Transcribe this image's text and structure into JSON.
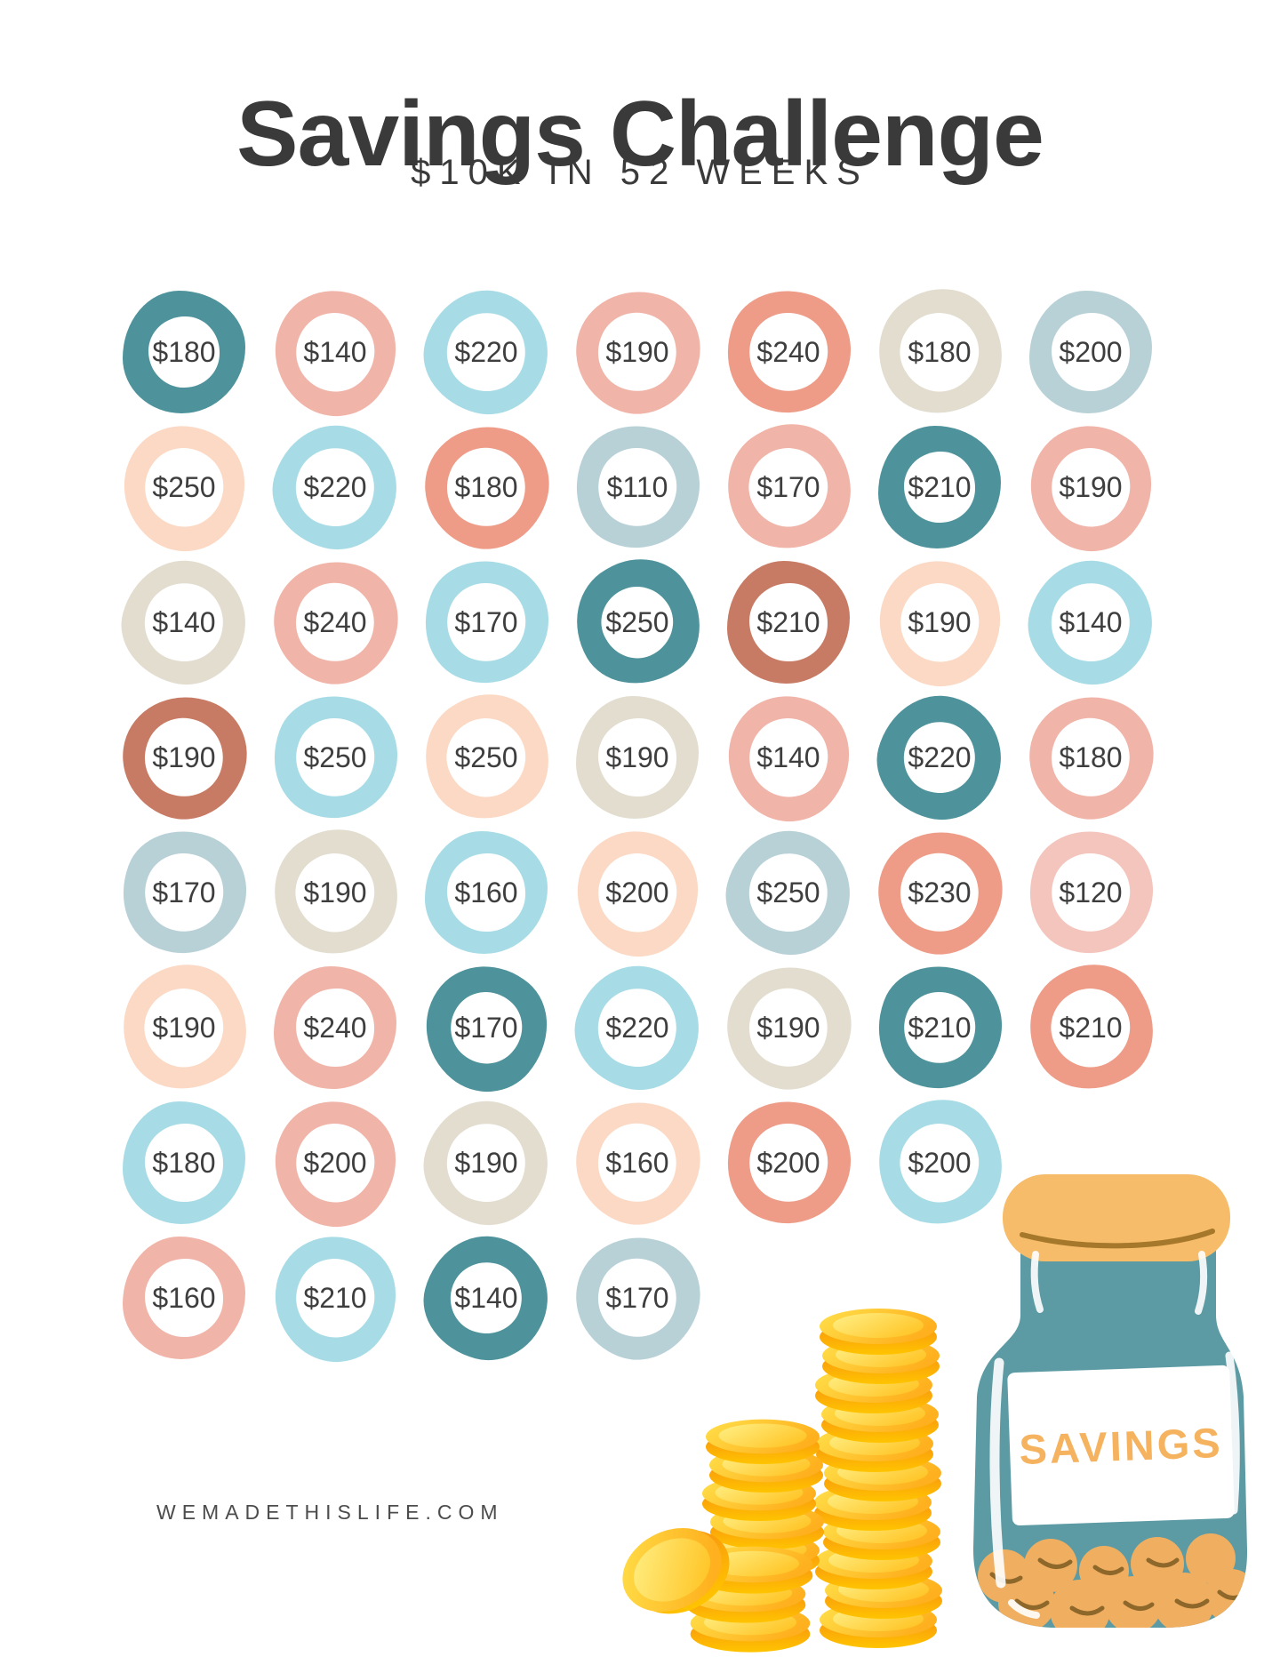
{
  "header": {
    "title": "Savings Challenge",
    "subtitle": "$10K IN 52 WEEKS"
  },
  "footer": {
    "website": "WEMADETHISLIFE.COM"
  },
  "jar": {
    "label": "SAVINGS"
  },
  "palette": {
    "teal": "#4E939B",
    "pink": "#F1B4A8",
    "lightblue": "#A7DCE6",
    "salmon": "#EE9C87",
    "beige": "#E2DDCF",
    "grayblue": "#B8D1D7",
    "peach": "#FBD9C4",
    "terracotta": "#C87B64",
    "pinklight": "#F4C5BC",
    "ink": "#3A3A3A"
  },
  "illustration_colors": {
    "jar_body": "#5C9BA4",
    "jar_lid": "#F6BC69",
    "jar_label_text": "#F5B35F",
    "jar_coins": "#F0AE61",
    "jar_coin_line": "#8E672A",
    "lid_line": "#A5782B",
    "gold_top_1": "#FFE04A",
    "gold_top_2": "#FFB01E",
    "gold_inner_1": "#FFF087",
    "gold_inner_2": "#FFC72B",
    "gold_side_1": "#F78E11",
    "gold_side_2": "#FFC400"
  },
  "grid": {
    "columns": 7,
    "rows": 8,
    "circles": [
      {
        "row": 1,
        "col": 1,
        "amount": "$180",
        "color": "teal"
      },
      {
        "row": 1,
        "col": 2,
        "amount": "$140",
        "color": "pink"
      },
      {
        "row": 1,
        "col": 3,
        "amount": "$220",
        "color": "lightblue"
      },
      {
        "row": 1,
        "col": 4,
        "amount": "$190",
        "color": "pink"
      },
      {
        "row": 1,
        "col": 5,
        "amount": "$240",
        "color": "salmon"
      },
      {
        "row": 1,
        "col": 6,
        "amount": "$180",
        "color": "beige"
      },
      {
        "row": 1,
        "col": 7,
        "amount": "$200",
        "color": "grayblue"
      },
      {
        "row": 2,
        "col": 1,
        "amount": "$250",
        "color": "peach"
      },
      {
        "row": 2,
        "col": 2,
        "amount": "$220",
        "color": "lightblue"
      },
      {
        "row": 2,
        "col": 3,
        "amount": "$180",
        "color": "salmon"
      },
      {
        "row": 2,
        "col": 4,
        "amount": "$110",
        "color": "grayblue"
      },
      {
        "row": 2,
        "col": 5,
        "amount": "$170",
        "color": "pink"
      },
      {
        "row": 2,
        "col": 6,
        "amount": "$210",
        "color": "teal"
      },
      {
        "row": 2,
        "col": 7,
        "amount": "$190",
        "color": "pink"
      },
      {
        "row": 3,
        "col": 1,
        "amount": "$140",
        "color": "beige"
      },
      {
        "row": 3,
        "col": 2,
        "amount": "$240",
        "color": "pink"
      },
      {
        "row": 3,
        "col": 3,
        "amount": "$170",
        "color": "lightblue"
      },
      {
        "row": 3,
        "col": 4,
        "amount": "$250",
        "color": "teal"
      },
      {
        "row": 3,
        "col": 5,
        "amount": "$210",
        "color": "terracotta"
      },
      {
        "row": 3,
        "col": 6,
        "amount": "$190",
        "color": "peach"
      },
      {
        "row": 3,
        "col": 7,
        "amount": "$140",
        "color": "lightblue"
      },
      {
        "row": 4,
        "col": 1,
        "amount": "$190",
        "color": "terracotta"
      },
      {
        "row": 4,
        "col": 2,
        "amount": "$250",
        "color": "lightblue"
      },
      {
        "row": 4,
        "col": 3,
        "amount": "$250",
        "color": "peach"
      },
      {
        "row": 4,
        "col": 4,
        "amount": "$190",
        "color": "beige"
      },
      {
        "row": 4,
        "col": 5,
        "amount": "$140",
        "color": "pink"
      },
      {
        "row": 4,
        "col": 6,
        "amount": "$220",
        "color": "teal"
      },
      {
        "row": 4,
        "col": 7,
        "amount": "$180",
        "color": "pink"
      },
      {
        "row": 5,
        "col": 1,
        "amount": "$170",
        "color": "grayblue"
      },
      {
        "row": 5,
        "col": 2,
        "amount": "$190",
        "color": "beige"
      },
      {
        "row": 5,
        "col": 3,
        "amount": "$160",
        "color": "lightblue"
      },
      {
        "row": 5,
        "col": 4,
        "amount": "$200",
        "color": "peach"
      },
      {
        "row": 5,
        "col": 5,
        "amount": "$250",
        "color": "grayblue"
      },
      {
        "row": 5,
        "col": 6,
        "amount": "$230",
        "color": "salmon"
      },
      {
        "row": 5,
        "col": 7,
        "amount": "$120",
        "color": "pinklight"
      },
      {
        "row": 6,
        "col": 1,
        "amount": "$190",
        "color": "peach"
      },
      {
        "row": 6,
        "col": 2,
        "amount": "$240",
        "color": "pink"
      },
      {
        "row": 6,
        "col": 3,
        "amount": "$170",
        "color": "teal"
      },
      {
        "row": 6,
        "col": 4,
        "amount": "$220",
        "color": "lightblue"
      },
      {
        "row": 6,
        "col": 5,
        "amount": "$190",
        "color": "beige"
      },
      {
        "row": 6,
        "col": 6,
        "amount": "$210",
        "color": "teal"
      },
      {
        "row": 6,
        "col": 7,
        "amount": "$210",
        "color": "salmon"
      },
      {
        "row": 7,
        "col": 1,
        "amount": "$180",
        "color": "lightblue"
      },
      {
        "row": 7,
        "col": 2,
        "amount": "$200",
        "color": "pink"
      },
      {
        "row": 7,
        "col": 3,
        "amount": "$190",
        "color": "beige"
      },
      {
        "row": 7,
        "col": 4,
        "amount": "$160",
        "color": "peach"
      },
      {
        "row": 7,
        "col": 5,
        "amount": "$200",
        "color": "salmon"
      },
      {
        "row": 7,
        "col": 6,
        "amount": "$200",
        "color": "lightblue"
      },
      {
        "row": 8,
        "col": 1,
        "amount": "$160",
        "color": "pink"
      },
      {
        "row": 8,
        "col": 2,
        "amount": "$210",
        "color": "lightblue"
      },
      {
        "row": 8,
        "col": 3,
        "amount": "$140",
        "color": "teal"
      },
      {
        "row": 8,
        "col": 4,
        "amount": "$170",
        "color": "grayblue"
      }
    ]
  }
}
